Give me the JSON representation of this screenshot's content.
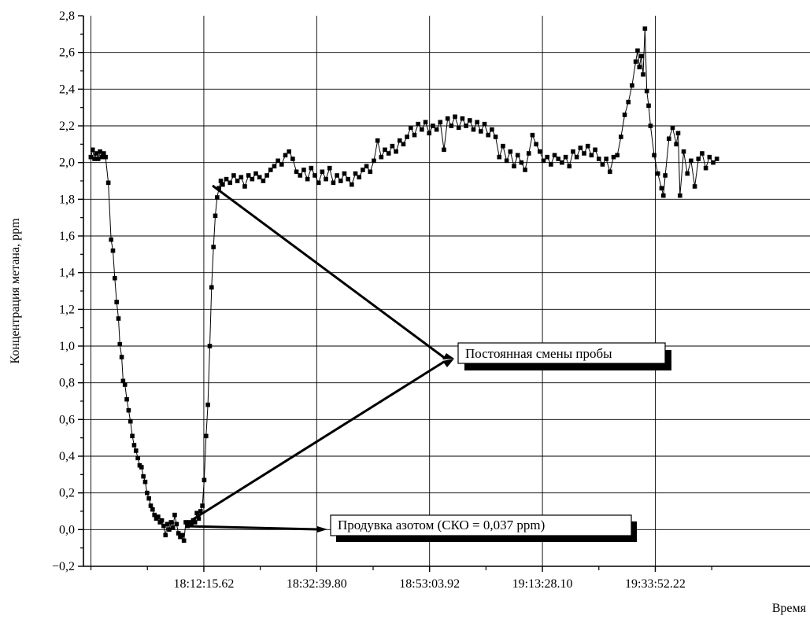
{
  "chart_data": {
    "type": "scatter",
    "xlabel": "Время",
    "ylabel": "Концентрация метана, ppm",
    "ylim": [
      -0.2,
      2.8
    ],
    "y_ticks": [
      "−0,2",
      "0,0",
      "0,2",
      "0,4",
      "0,6",
      "0,8",
      "1,0",
      "1,2",
      "1,4",
      "1,6",
      "1,8",
      "2,0",
      "2,2",
      "2,4",
      "2,6",
      "2,8"
    ],
    "x_ticks": [
      "18:12:15.62",
      "18:32:39.80",
      "18:53:03.92",
      "19:13:28.10",
      "19:33:52.22"
    ],
    "x_major_times": [
      "18:12:15.62",
      "18:32:39.80",
      "18:53:03.92",
      "19:13:28.10",
      "19:33:52.22"
    ],
    "x_minor_times": [
      "17:51:51.44",
      "18:02:03.53",
      "18:22:27.71",
      "18:42:51.89",
      "19:03:15.98",
      "19:23:40.16",
      "19:44:04.31"
    ],
    "xlim": [
      "17:50:30",
      "20:01:50"
    ],
    "grid": true,
    "marker": "square",
    "line": "connected",
    "color": "#000000",
    "series": [
      {
        "points": [
          [
            "17:51:50",
            2.03
          ],
          [
            "17:52:10",
            2.07
          ],
          [
            "17:52:30",
            2.02
          ],
          [
            "17:52:50",
            2.05
          ],
          [
            "17:53:10",
            2.02
          ],
          [
            "17:53:30",
            2.06
          ],
          [
            "17:53:50",
            2.03
          ],
          [
            "17:54:10",
            2.05
          ],
          [
            "17:54:30",
            2.03
          ],
          [
            "17:55:00",
            1.89
          ],
          [
            "17:55:30",
            1.58
          ],
          [
            "17:55:50",
            1.52
          ],
          [
            "17:56:10",
            1.37
          ],
          [
            "17:56:30",
            1.24
          ],
          [
            "17:56:50",
            1.15
          ],
          [
            "17:57:05",
            1.01
          ],
          [
            "17:57:25",
            0.94
          ],
          [
            "17:57:40",
            0.81
          ],
          [
            "17:58:00",
            0.79
          ],
          [
            "17:58:20",
            0.71
          ],
          [
            "17:58:40",
            0.65
          ],
          [
            "17:59:00",
            0.59
          ],
          [
            "17:59:20",
            0.51
          ],
          [
            "17:59:40",
            0.46
          ],
          [
            "18:00:00",
            0.43
          ],
          [
            "18:00:20",
            0.39
          ],
          [
            "18:00:40",
            0.35
          ],
          [
            "18:01:00",
            0.34
          ],
          [
            "18:01:20",
            0.29
          ],
          [
            "18:01:40",
            0.26
          ],
          [
            "18:02:00",
            0.2
          ],
          [
            "18:02:20",
            0.17
          ],
          [
            "18:02:40",
            0.13
          ],
          [
            "18:03:00",
            0.11
          ],
          [
            "18:03:20",
            0.08
          ],
          [
            "18:03:40",
            0.06
          ],
          [
            "18:04:00",
            0.07
          ],
          [
            "18:04:20",
            0.04
          ],
          [
            "18:04:40",
            0.05
          ],
          [
            "18:05:00",
            0.02
          ],
          [
            "18:05:20",
            -0.03
          ],
          [
            "18:05:40",
            0.03
          ],
          [
            "18:06:00",
            0.0
          ],
          [
            "18:06:20",
            0.04
          ],
          [
            "18:06:40",
            0.01
          ],
          [
            "18:07:00",
            0.08
          ],
          [
            "18:07:20",
            0.03
          ],
          [
            "18:07:40",
            -0.02
          ],
          [
            "18:08:00",
            -0.04
          ],
          [
            "18:08:20",
            -0.03
          ],
          [
            "18:08:40",
            -0.06
          ],
          [
            "18:09:00",
            0.04
          ],
          [
            "18:09:20",
            0.02
          ],
          [
            "18:09:40",
            0.04
          ],
          [
            "18:10:00",
            0.03
          ],
          [
            "18:10:20",
            0.05
          ],
          [
            "18:10:40",
            0.04
          ],
          [
            "18:11:00",
            0.09
          ],
          [
            "18:11:20",
            0.06
          ],
          [
            "18:11:40",
            0.1
          ],
          [
            "18:12:00",
            0.13
          ],
          [
            "18:12:20",
            0.27
          ],
          [
            "18:12:40",
            0.51
          ],
          [
            "18:13:00",
            0.68
          ],
          [
            "18:13:20",
            1.0
          ],
          [
            "18:13:40",
            1.32
          ],
          [
            "18:14:00",
            1.54
          ],
          [
            "18:14:20",
            1.71
          ],
          [
            "18:14:40",
            1.81
          ],
          [
            "18:15:00",
            1.86
          ],
          [
            "18:15:20",
            1.9
          ],
          [
            "18:15:40",
            1.88
          ],
          [
            "18:16:20",
            1.91
          ],
          [
            "18:17:00",
            1.89
          ],
          [
            "18:17:40",
            1.93
          ],
          [
            "18:18:20",
            1.9
          ],
          [
            "18:19:00",
            1.92
          ],
          [
            "18:19:40",
            1.87
          ],
          [
            "18:20:20",
            1.93
          ],
          [
            "18:21:00",
            1.91
          ],
          [
            "18:21:40",
            1.94
          ],
          [
            "18:22:20",
            1.92
          ],
          [
            "18:23:00",
            1.9
          ],
          [
            "18:23:40",
            1.93
          ],
          [
            "18:24:20",
            1.96
          ],
          [
            "18:25:00",
            1.98
          ],
          [
            "18:25:40",
            2.01
          ],
          [
            "18:26:20",
            1.99
          ],
          [
            "18:27:00",
            2.04
          ],
          [
            "18:27:40",
            2.06
          ],
          [
            "18:28:20",
            2.02
          ],
          [
            "18:29:00",
            1.95
          ],
          [
            "18:29:40",
            1.93
          ],
          [
            "18:30:20",
            1.96
          ],
          [
            "18:31:00",
            1.91
          ],
          [
            "18:31:40",
            1.97
          ],
          [
            "18:32:20",
            1.93
          ],
          [
            "18:33:00",
            1.89
          ],
          [
            "18:33:40",
            1.95
          ],
          [
            "18:34:20",
            1.91
          ],
          [
            "18:35:00",
            1.97
          ],
          [
            "18:35:40",
            1.89
          ],
          [
            "18:36:20",
            1.93
          ],
          [
            "18:37:00",
            1.9
          ],
          [
            "18:37:40",
            1.94
          ],
          [
            "18:38:20",
            1.91
          ],
          [
            "18:39:00",
            1.88
          ],
          [
            "18:39:40",
            1.94
          ],
          [
            "18:40:20",
            1.92
          ],
          [
            "18:41:00",
            1.96
          ],
          [
            "18:41:40",
            1.98
          ],
          [
            "18:42:20",
            1.95
          ],
          [
            "18:43:00",
            2.01
          ],
          [
            "18:43:40",
            2.12
          ],
          [
            "18:44:20",
            2.03
          ],
          [
            "18:45:00",
            2.07
          ],
          [
            "18:45:40",
            2.05
          ],
          [
            "18:46:20",
            2.09
          ],
          [
            "18:47:00",
            2.06
          ],
          [
            "18:47:40",
            2.12
          ],
          [
            "18:48:20",
            2.1
          ],
          [
            "18:49:00",
            2.14
          ],
          [
            "18:49:40",
            2.19
          ],
          [
            "18:50:20",
            2.15
          ],
          [
            "18:51:00",
            2.21
          ],
          [
            "18:51:40",
            2.18
          ],
          [
            "18:52:20",
            2.22
          ],
          [
            "18:53:00",
            2.16
          ],
          [
            "18:53:40",
            2.2
          ],
          [
            "18:54:20",
            2.18
          ],
          [
            "18:55:00",
            2.22
          ],
          [
            "18:55:40",
            2.07
          ],
          [
            "18:56:20",
            2.24
          ],
          [
            "18:57:00",
            2.2
          ],
          [
            "18:57:40",
            2.25
          ],
          [
            "18:58:20",
            2.19
          ],
          [
            "18:59:00",
            2.24
          ],
          [
            "18:59:40",
            2.2
          ],
          [
            "19:00:20",
            2.23
          ],
          [
            "19:01:00",
            2.18
          ],
          [
            "19:01:40",
            2.22
          ],
          [
            "19:02:20",
            2.17
          ],
          [
            "19:03:00",
            2.21
          ],
          [
            "19:03:40",
            2.15
          ],
          [
            "19:04:20",
            2.18
          ],
          [
            "19:05:00",
            2.14
          ],
          [
            "19:05:40",
            2.03
          ],
          [
            "19:06:20",
            2.09
          ],
          [
            "19:07:00",
            2.01
          ],
          [
            "19:07:40",
            2.06
          ],
          [
            "19:08:20",
            1.98
          ],
          [
            "19:09:00",
            2.04
          ],
          [
            "19:09:40",
            2.0
          ],
          [
            "19:10:20",
            1.96
          ],
          [
            "19:11:00",
            2.05
          ],
          [
            "19:11:40",
            2.15
          ],
          [
            "19:12:20",
            2.1
          ],
          [
            "19:13:00",
            2.06
          ],
          [
            "19:13:40",
            2.01
          ],
          [
            "19:14:20",
            2.03
          ],
          [
            "19:15:00",
            1.99
          ],
          [
            "19:15:40",
            2.04
          ],
          [
            "19:16:20",
            2.02
          ],
          [
            "19:17:00",
            2.0
          ],
          [
            "19:17:40",
            2.03
          ],
          [
            "19:18:20",
            1.98
          ],
          [
            "19:19:00",
            2.06
          ],
          [
            "19:19:40",
            2.03
          ],
          [
            "19:20:20",
            2.08
          ],
          [
            "19:21:00",
            2.05
          ],
          [
            "19:21:40",
            2.09
          ],
          [
            "19:22:20",
            2.04
          ],
          [
            "19:23:00",
            2.07
          ],
          [
            "19:23:40",
            2.02
          ],
          [
            "19:24:20",
            1.99
          ],
          [
            "19:25:00",
            2.02
          ],
          [
            "19:25:40",
            1.95
          ],
          [
            "19:26:20",
            2.03
          ],
          [
            "19:27:00",
            2.04
          ],
          [
            "19:27:40",
            2.14
          ],
          [
            "19:28:20",
            2.26
          ],
          [
            "19:29:00",
            2.33
          ],
          [
            "19:29:40",
            2.42
          ],
          [
            "19:30:20",
            2.55
          ],
          [
            "19:30:40",
            2.61
          ],
          [
            "19:31:00",
            2.52
          ],
          [
            "19:31:20",
            2.58
          ],
          [
            "19:31:40",
            2.48
          ],
          [
            "19:32:00",
            2.73
          ],
          [
            "19:32:20",
            2.39
          ],
          [
            "19:32:40",
            2.31
          ],
          [
            "19:33:00",
            2.2
          ],
          [
            "19:33:40",
            2.04
          ],
          [
            "19:34:20",
            1.94
          ],
          [
            "19:35:00",
            1.86
          ],
          [
            "19:35:20",
            1.82
          ],
          [
            "19:35:40",
            1.93
          ],
          [
            "19:36:20",
            2.13
          ],
          [
            "19:37:00",
            2.19
          ],
          [
            "19:37:40",
            2.1
          ],
          [
            "19:38:00",
            2.16
          ],
          [
            "19:38:20",
            1.82
          ],
          [
            "19:39:00",
            2.06
          ],
          [
            "19:39:40",
            1.94
          ],
          [
            "19:40:20",
            2.01
          ],
          [
            "19:41:00",
            1.87
          ],
          [
            "19:41:40",
            2.02
          ],
          [
            "19:42:20",
            2.05
          ],
          [
            "19:43:00",
            1.97
          ],
          [
            "19:43:40",
            2.03
          ],
          [
            "19:44:20",
            2.0
          ],
          [
            "19:45:00",
            2.02
          ]
        ]
      }
    ],
    "annotations": [
      {
        "id": "ann1",
        "text": "Постоянная смены пробы"
      },
      {
        "id": "ann2",
        "text": "Продувка азотом (СКО = 0,037 ppm)"
      }
    ]
  }
}
